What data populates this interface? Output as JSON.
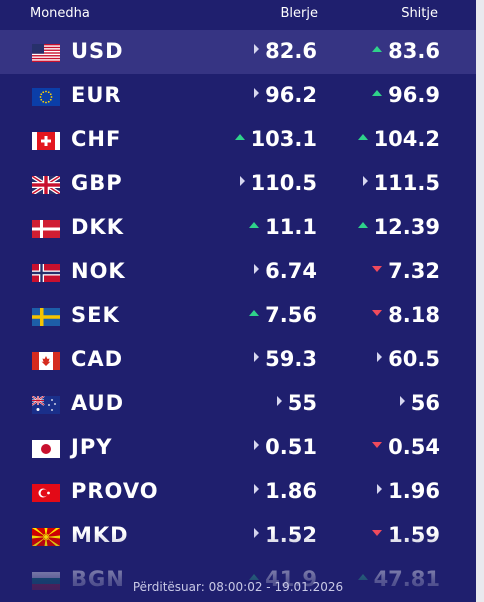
{
  "header": {
    "currency": "Monedha",
    "buy": "Blerje",
    "sell": "Shitje"
  },
  "rows": [
    {
      "code": "USD",
      "flag": "us-flag",
      "buy": "82.6",
      "buy_trend": "flat",
      "sell": "83.6",
      "sell_trend": "up"
    },
    {
      "code": "EUR",
      "flag": "eu-flag",
      "buy": "96.2",
      "buy_trend": "flat",
      "sell": "96.9",
      "sell_trend": "up"
    },
    {
      "code": "CHF",
      "flag": "ch-flag",
      "buy": "103.1",
      "buy_trend": "up",
      "sell": "104.2",
      "sell_trend": "up"
    },
    {
      "code": "GBP",
      "flag": "gb-flag",
      "buy": "110.5",
      "buy_trend": "flat",
      "sell": "111.5",
      "sell_trend": "flat"
    },
    {
      "code": "DKK",
      "flag": "dk-flag",
      "buy": "11.1",
      "buy_trend": "up",
      "sell": "12.39",
      "sell_trend": "up"
    },
    {
      "code": "NOK",
      "flag": "no-flag",
      "buy": "6.74",
      "buy_trend": "flat",
      "sell": "7.32",
      "sell_trend": "down"
    },
    {
      "code": "SEK",
      "flag": "se-flag",
      "buy": "7.56",
      "buy_trend": "up",
      "sell": "8.18",
      "sell_trend": "down"
    },
    {
      "code": "CAD",
      "flag": "ca-flag",
      "buy": "59.3",
      "buy_trend": "flat",
      "sell": "60.5",
      "sell_trend": "flat"
    },
    {
      "code": "AUD",
      "flag": "au-flag",
      "buy": "55",
      "buy_trend": "flat",
      "sell": "56",
      "sell_trend": "flat"
    },
    {
      "code": "JPY",
      "flag": "jp-flag",
      "buy": "0.51",
      "buy_trend": "flat",
      "sell": "0.54",
      "sell_trend": "down"
    },
    {
      "code": "PROVO",
      "flag": "tr-flag",
      "buy": "1.86",
      "buy_trend": "flat",
      "sell": "1.96",
      "sell_trend": "flat"
    },
    {
      "code": "MKD",
      "flag": "mk-flag",
      "buy": "1.52",
      "buy_trend": "flat",
      "sell": "1.59",
      "sell_trend": "down"
    },
    {
      "code": "BGN",
      "flag": "bg-flag",
      "buy": "41.9",
      "buy_trend": "up",
      "sell": "47.81",
      "sell_trend": "up"
    }
  ],
  "footer": {
    "updated": "Përditësuar: 08:00:02 - 19.01.2026"
  },
  "colors": {
    "panel": "#1f1f6e",
    "highlight": "#363483",
    "up": "#2fd28a",
    "down": "#f04a5c",
    "flat": "#d6d6ef"
  }
}
